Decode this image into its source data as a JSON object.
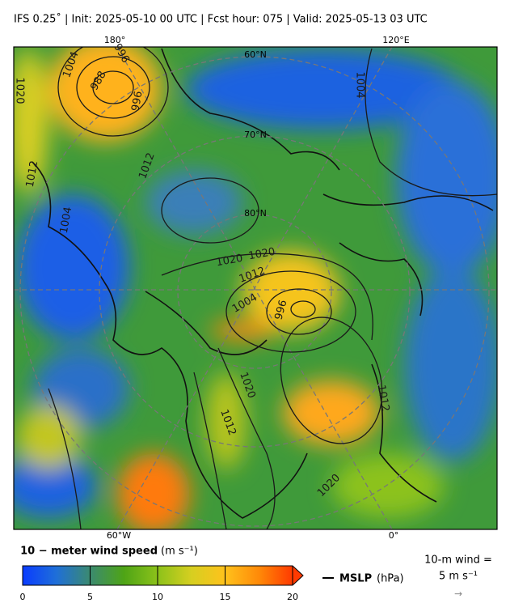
{
  "header": {
    "title": "IFS 0.25˚  |  Init: 2025-05-10 00 UTC  |  Fcst hour: 075  |  Valid: 2025-05-13 03 UTC"
  },
  "map": {
    "lon_labels_top": [
      "180°",
      "120°E"
    ],
    "lon_labels_bottom": [
      "60°W",
      "0°"
    ],
    "lat_labels": [
      "60°N",
      "70°N",
      "80°N"
    ],
    "contour_labels": [
      "1004",
      "988",
      "996",
      "996",
      "1020",
      "1012",
      "1012",
      "1004",
      "1020",
      "1020",
      "1012",
      "1004",
      "996",
      "1004",
      "1020",
      "1012",
      "1020",
      "1012"
    ]
  },
  "colorbar": {
    "label": "10 − meter wind speed",
    "units": "(m s⁻¹)",
    "lim": [
      0,
      20
    ],
    "ticks": [
      0,
      5,
      10,
      15,
      20
    ],
    "colors": [
      "#0a3cff",
      "#1f6fd8",
      "#3b8a70",
      "#4ea416",
      "#8cc21a",
      "#d6cf20",
      "#ffc21c",
      "#ff8a08",
      "#ff3a00"
    ]
  },
  "legend": {
    "mslp_label": "MSLP",
    "mslp_units": "(hPa)",
    "wind_key": "10-m wind =",
    "wind_key_value": "5 m s⁻¹",
    "wind_arrow": "→"
  }
}
